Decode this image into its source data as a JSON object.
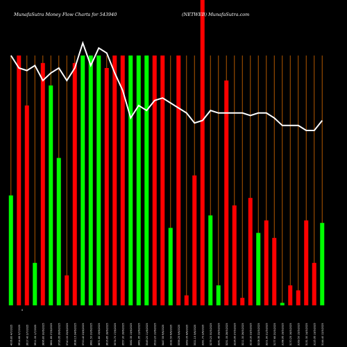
{
  "chart_data": {
    "type": "bar",
    "title_left": "MunafaSutra  Money Flow  Charts for 543940",
    "title_right": "(NETWEB) MunafaSutra.com",
    "colors": {
      "up": "#00ff00",
      "down": "#ff0000",
      "line": "#ffffff",
      "grid": "#b35900",
      "background": "#000000"
    },
    "ylim": [
      0,
      100
    ],
    "bars": [
      {
        "v": 44,
        "c": "up"
      },
      {
        "v": 100,
        "c": "down"
      },
      {
        "v": 80,
        "c": "down"
      },
      {
        "v": 17,
        "c": "up"
      },
      {
        "v": 97,
        "c": "down"
      },
      {
        "v": 88,
        "c": "up"
      },
      {
        "v": 59,
        "c": "up"
      },
      {
        "v": 12,
        "c": "down"
      },
      {
        "v": 97,
        "c": "down"
      },
      {
        "v": 100,
        "c": "up"
      },
      {
        "v": 100,
        "c": "up"
      },
      {
        "v": 100,
        "c": "up"
      },
      {
        "v": 95,
        "c": "down"
      },
      {
        "v": 100,
        "c": "down"
      },
      {
        "v": 100,
        "c": "down"
      },
      {
        "v": 100,
        "c": "up"
      },
      {
        "v": 100,
        "c": "up"
      },
      {
        "v": 100,
        "c": "up"
      },
      {
        "v": 100,
        "c": "down"
      },
      {
        "v": 100,
        "c": "down"
      },
      {
        "v": 31,
        "c": "up"
      },
      {
        "v": 100,
        "c": "down"
      },
      {
        "v": 4,
        "c": "down"
      },
      {
        "v": 52,
        "c": "down"
      },
      {
        "v": 104,
        "c": "down"
      },
      {
        "v": 36,
        "c": "up"
      },
      {
        "v": 8,
        "c": "up"
      },
      {
        "v": 90,
        "c": "down"
      },
      {
        "v": 40,
        "c": "down"
      },
      {
        "v": 3,
        "c": "down"
      },
      {
        "v": 43,
        "c": "down"
      },
      {
        "v": 29,
        "c": "up"
      },
      {
        "v": 34,
        "c": "down"
      },
      {
        "v": 27,
        "c": "down"
      },
      {
        "v": 1,
        "c": "up"
      },
      {
        "v": 8,
        "c": "down"
      },
      {
        "v": 6,
        "c": "down"
      },
      {
        "v": 34,
        "c": "down"
      },
      {
        "v": 17,
        "c": "down"
      },
      {
        "v": 33,
        "c": "up"
      }
    ],
    "line": [
      100,
      95,
      94,
      96,
      90,
      93,
      95,
      90,
      95,
      106,
      96,
      103,
      101,
      93,
      86,
      75,
      80,
      78,
      82,
      83,
      81,
      79,
      77,
      73,
      74,
      78,
      77,
      77,
      77,
      77,
      76,
      77,
      77,
      75,
      72,
      72,
      72,
      70,
      70,
      74
    ],
    "x_labels": [
      "4006.80 4/7/2025",
      "3914.65 3/7/2025",
      "3917.40 2/7/2025",
      "3911.05 1/7/2025",
      "3896.80 30/6/2025",
      "3861.85 27/6/2025",
      "3726.95 26/6/2025",
      "3740.00 25/6/2025",
      "3638.15 24/6/2025",
      "3700.40 23/6/2025",
      "3681.50 20/6/2025",
      "3671.80 19/6/2025",
      "3616.85 18/6/2025",
      "3574.70 17/6/2025",
      "3557.30 16/6/2025",
      "3582.35 13/6/2025",
      "3461.95 12/6/2025",
      "3549.20 11/6/2025",
      "3523.20 10/6/2025",
      "3447.55 9/6/2025",
      "3332.50 6/6/2025",
      "3356.25 5/6/2025",
      "3363.05 4/6/2025",
      "3321.15 3/6/2025",
      "3281.70 2/6/2025",
      "3279.20 30/5/2025",
      "3241.45 29/5/2025",
      "3251.05 28/5/2025",
      "3226.95 27/5/2025",
      "3211.30 26/5/2025",
      "3218.30 23/5/2025",
      "3208.35 22/5/2025",
      "3201.90 21/5/2025",
      "3177.65 20/5/2025",
      "3168.95 19/5/2025",
      "3170.25 16/5/2025",
      "3163.50 15/5/2025",
      "3131.30 14/5/2025",
      "3125.95 13/5/2025",
      "3144.40 12/5/2025"
    ],
    "corner_label": "0"
  }
}
